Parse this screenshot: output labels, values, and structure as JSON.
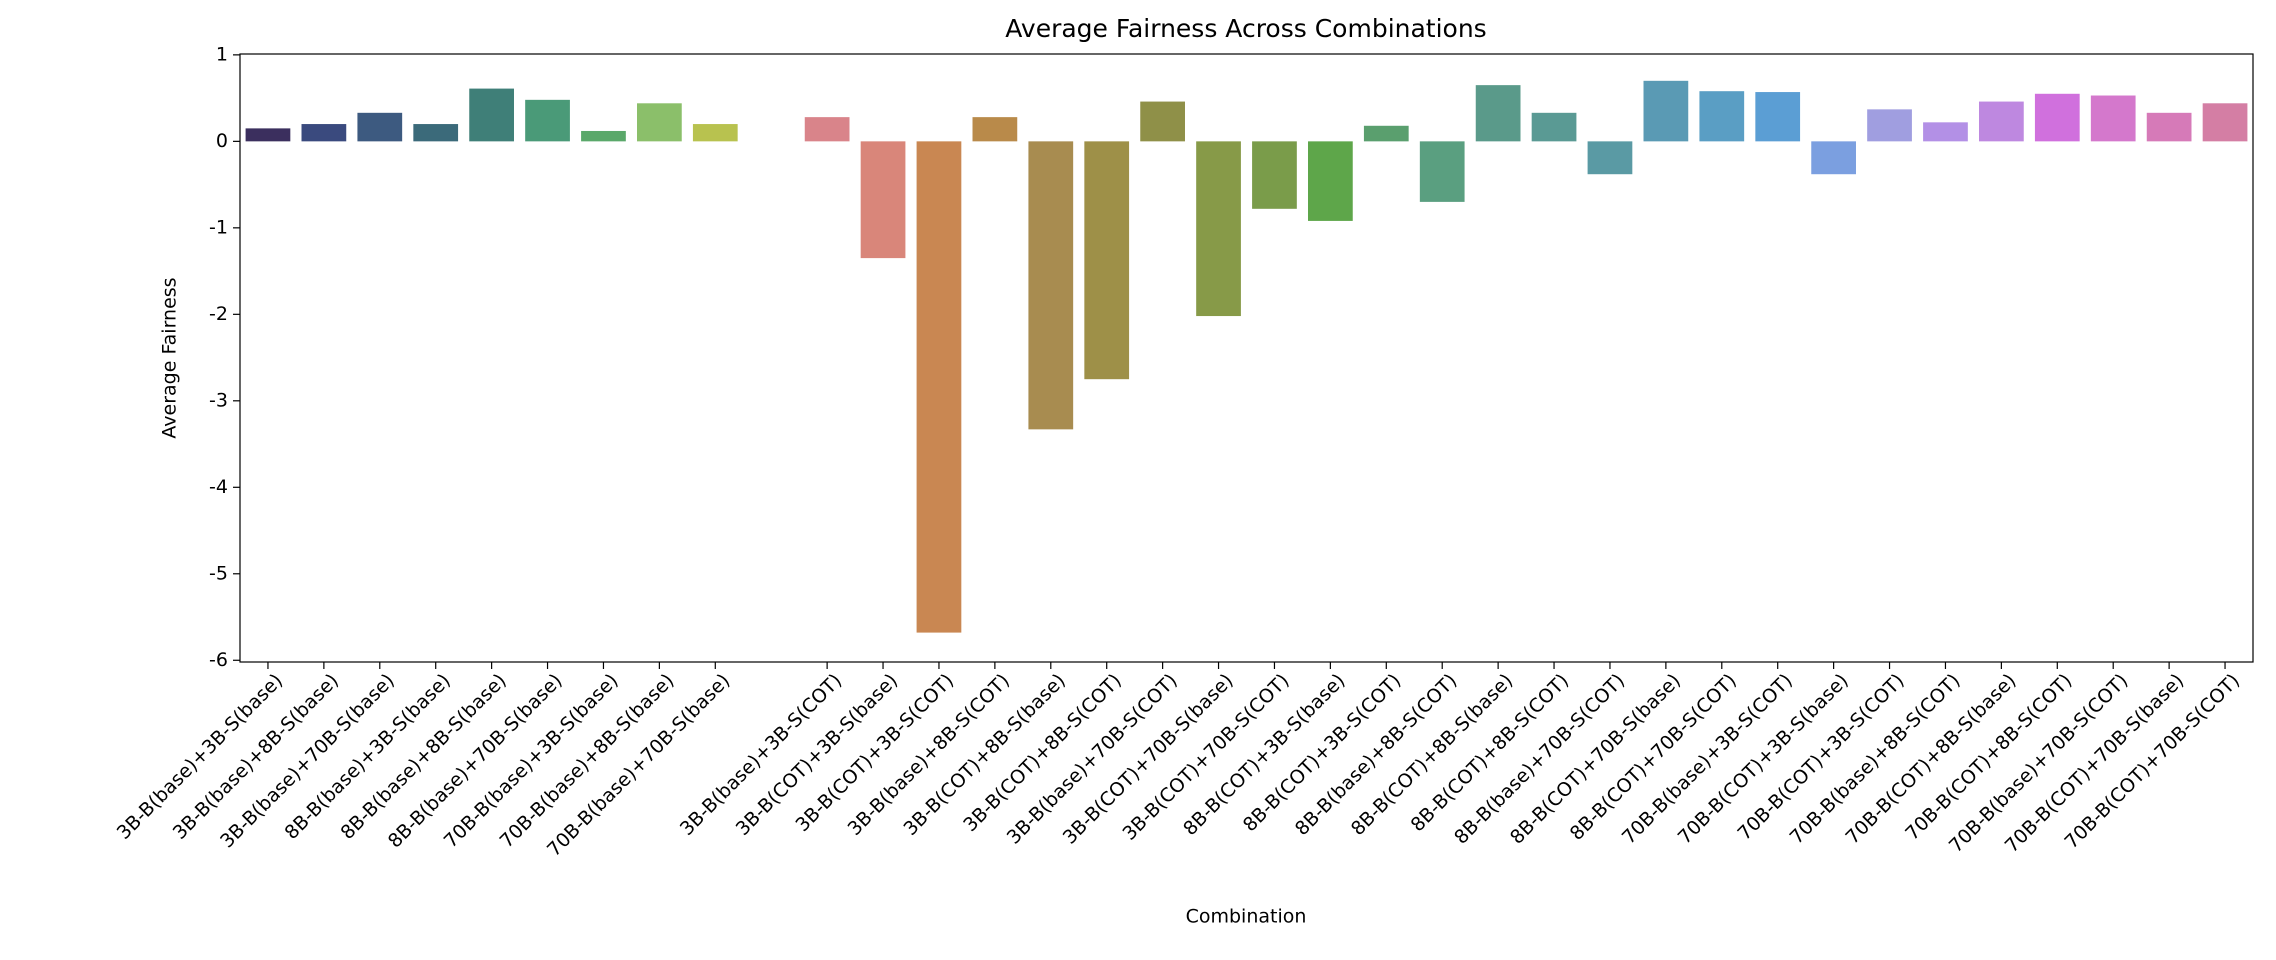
{
  "chart_data": {
    "type": "bar",
    "title": "Average Fairness Across Combinations",
    "xlabel": "Combination",
    "ylabel": "Average Fairness",
    "categories": [
      "3B-B(base)+3B-S(base)",
      "3B-B(base)+8B-S(base)",
      "3B-B(base)+70B-S(base)",
      "8B-B(base)+3B-S(base)",
      "8B-B(base)+8B-S(base)",
      "8B-B(base)+70B-S(base)",
      "70B-B(base)+3B-S(base)",
      "70B-B(base)+8B-S(base)",
      "70B-B(base)+70B-S(base)",
      null,
      "3B-B(base)+3B-S(COT)",
      "3B-B(COT)+3B-S(base)",
      "3B-B(COT)+3B-S(COT)",
      "3B-B(base)+8B-S(COT)",
      "3B-B(COT)+8B-S(base)",
      "3B-B(COT)+8B-S(COT)",
      "3B-B(base)+70B-S(COT)",
      "3B-B(COT)+70B-S(base)",
      "3B-B(COT)+70B-S(COT)",
      "8B-B(COT)+3B-S(base)",
      "8B-B(COT)+3B-S(COT)",
      "8B-B(base)+8B-S(COT)",
      "8B-B(COT)+8B-S(base)",
      "8B-B(COT)+8B-S(COT)",
      "8B-B(base)+70B-S(COT)",
      "8B-B(COT)+70B-S(base)",
      "8B-B(COT)+70B-S(COT)",
      "70B-B(base)+3B-S(COT)",
      "70B-B(COT)+3B-S(base)",
      "70B-B(COT)+3B-S(COT)",
      "70B-B(base)+8B-S(COT)",
      "70B-B(COT)+8B-S(base)",
      "70B-B(COT)+8B-S(COT)",
      "70B-B(base)+70B-S(COT)",
      "70B-B(COT)+70B-S(base)",
      "70B-B(COT)+70B-S(COT)"
    ],
    "values": [
      0.15,
      0.2,
      0.33,
      0.2,
      0.61,
      0.48,
      0.12,
      0.44,
      0.2,
      null,
      0.28,
      -1.35,
      -5.68,
      0.28,
      -3.33,
      -2.75,
      0.46,
      -2.02,
      -0.78,
      -0.92,
      0.18,
      -0.7,
      0.65,
      0.33,
      -0.38,
      0.7,
      0.58,
      0.57,
      -0.38,
      0.37,
      0.22,
      0.46,
      0.55,
      0.53,
      0.33,
      0.44
    ],
    "colors": [
      "#3b2f5e",
      "#3a4a7e",
      "#3d5a80",
      "#3b6a7a",
      "#3f7f78",
      "#4a9a78",
      "#5aa86a",
      "#8bbf6a",
      "#b8c24f",
      null,
      "#d9848a",
      "#d9867a",
      "#c98752",
      "#b98a4a",
      "#a88c50",
      "#9e9048",
      "#8f9048",
      "#879a48",
      "#7a9c4a",
      "#5ea64a",
      "#5a9f6e",
      "#5a9f80",
      "#5a9a8a",
      "#5a9a94",
      "#5a9aa4",
      "#5a9ab4",
      "#5a9ec4",
      "#5b9ed4",
      "#7b9fe0",
      "#a09ee0",
      "#b390e6",
      "#be88e0",
      "#d070dd",
      "#d478cc",
      "#d67ab8",
      "#d47ea4"
    ],
    "ylim": [
      -6.02,
      1.01
    ],
    "yticks": [
      -6,
      -5,
      -4,
      -3,
      -2,
      -1,
      0,
      1
    ],
    "grid": false
  }
}
